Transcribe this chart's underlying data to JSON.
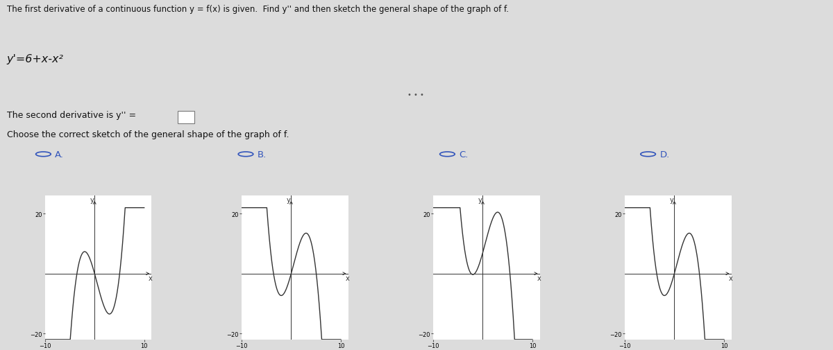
{
  "title": "The first derivative of a continuous function y = f(x) is given.  Find y'' and then sketch the general shape of the graph of f.",
  "formula": "y'=6+x-x²",
  "second_deriv_label": "The second derivative is y'' =",
  "choose_label": "Choose the correct sketch of the general shape of the graph of f.",
  "labels": [
    "A.",
    "B.",
    "C.",
    "D."
  ],
  "bg_color": "#dcdcdc",
  "separator_color": "#aaaaaa",
  "text_color": "#111111",
  "radio_color": "#3355bb",
  "curve_color": "#333333",
  "axis_color": "#333333",
  "xlim": [
    -10,
    10
  ],
  "ylim": [
    -20,
    20
  ]
}
